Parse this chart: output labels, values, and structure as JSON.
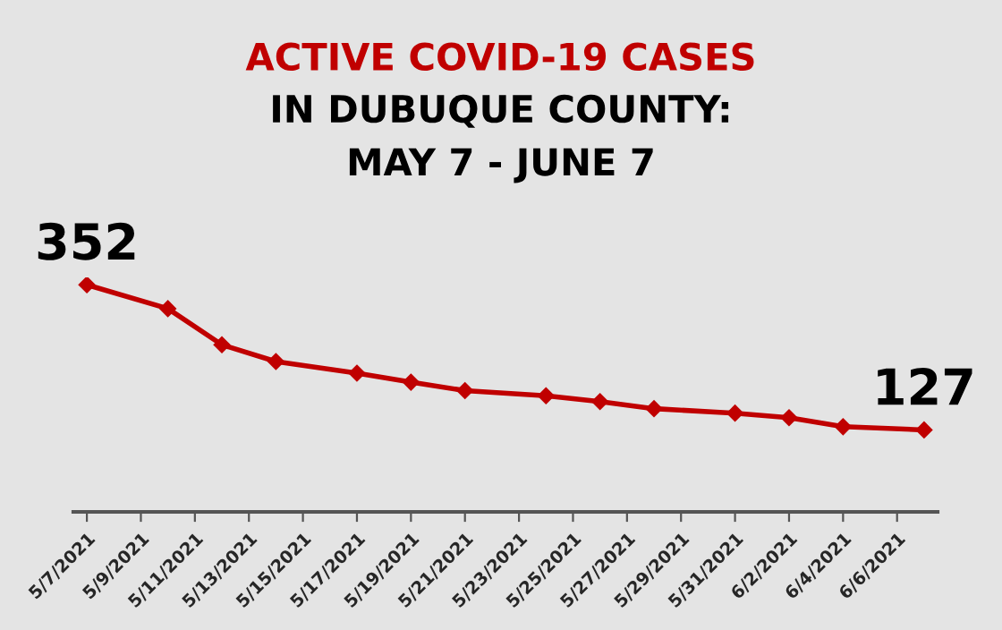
{
  "chart_data": {
    "type": "line",
    "title": "ACTIVE COVID-19 CASES",
    "subtitle": "IN DUBUQUE COUNTY:\nMAY 7 - JUNE 7",
    "x": [
      "2021-05-07",
      "2021-05-10",
      "2021-05-12",
      "2021-05-14",
      "2021-05-17",
      "2021-05-19",
      "2021-05-21",
      "2021-05-24",
      "2021-05-26",
      "2021-05-28",
      "2021-05-31",
      "2021-06-02",
      "2021-06-04",
      "2021-06-07"
    ],
    "series": [
      {
        "color": "#c00000",
        "values": [
          352,
          315,
          259,
          233,
          215,
          201,
          188,
          180,
          171,
          160,
          153,
          146,
          132,
          127
        ],
        "value_labels": [
          "352",
          null,
          null,
          null,
          null,
          null,
          null,
          null,
          null,
          null,
          null,
          null,
          null,
          "127"
        ]
      }
    ],
    "xlim": [
      "2021-05-06T12:00",
      "2021-06-07T12:00"
    ],
    "xticks": [
      {
        "value": "2021-05-07",
        "label": "5/7/2021"
      },
      {
        "value": "2021-05-09",
        "label": "5/9/2021"
      },
      {
        "value": "2021-05-11",
        "label": "5/11/2021"
      },
      {
        "value": "2021-05-13",
        "label": "5/13/2021"
      },
      {
        "value": "2021-05-15",
        "label": "5/15/2021"
      },
      {
        "value": "2021-05-17",
        "label": "5/17/2021"
      },
      {
        "value": "2021-05-19",
        "label": "5/19/2021"
      },
      {
        "value": "2021-05-21",
        "label": "5/21/2021"
      },
      {
        "value": "2021-05-23",
        "label": "5/23/2021"
      },
      {
        "value": "2021-05-25",
        "label": "5/25/2021"
      },
      {
        "value": "2021-05-27",
        "label": "5/27/2021"
      },
      {
        "value": "2021-05-29",
        "label": "5/29/2021"
      },
      {
        "value": "2021-05-31",
        "label": "5/31/2021"
      },
      {
        "value": "2021-06-02",
        "label": "6/2/2021"
      },
      {
        "value": "2021-06-04",
        "label": "6/4/2021"
      },
      {
        "value": "2021-06-06",
        "label": "6/6/2021"
      }
    ],
    "tick_labels": "x",
    "marker": "diamond",
    "line_style": "solid",
    "grid": false,
    "legend": false
  }
}
